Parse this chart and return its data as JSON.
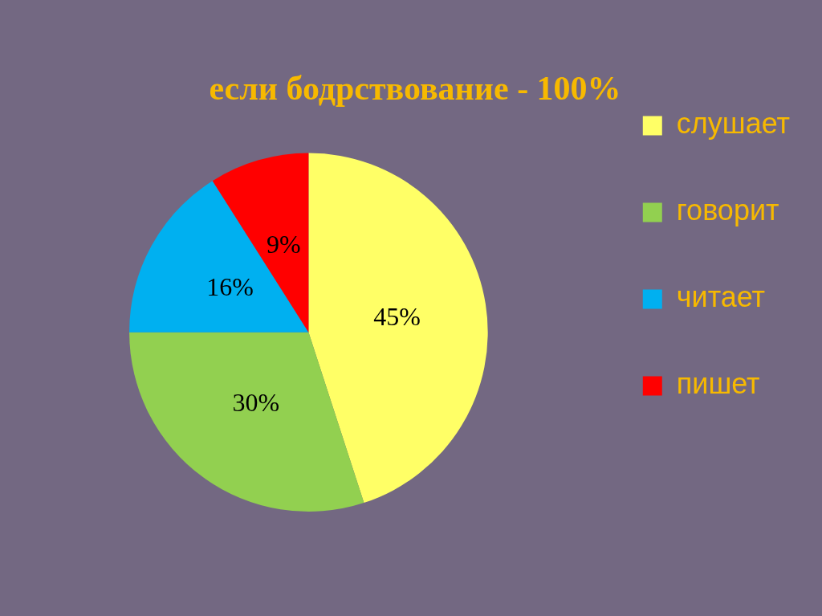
{
  "chart_data": {
    "type": "pie",
    "title": "если бодрствование - 100%",
    "categories": [
      "слушает",
      "говорит",
      "читает",
      "пишет"
    ],
    "values": [
      45,
      30,
      16,
      9
    ],
    "value_labels": [
      "45%",
      "30%",
      "16%",
      "9%"
    ],
    "colors": [
      "#ffff66",
      "#92d050",
      "#00b0f0",
      "#ff0000"
    ],
    "legend": "right"
  }
}
